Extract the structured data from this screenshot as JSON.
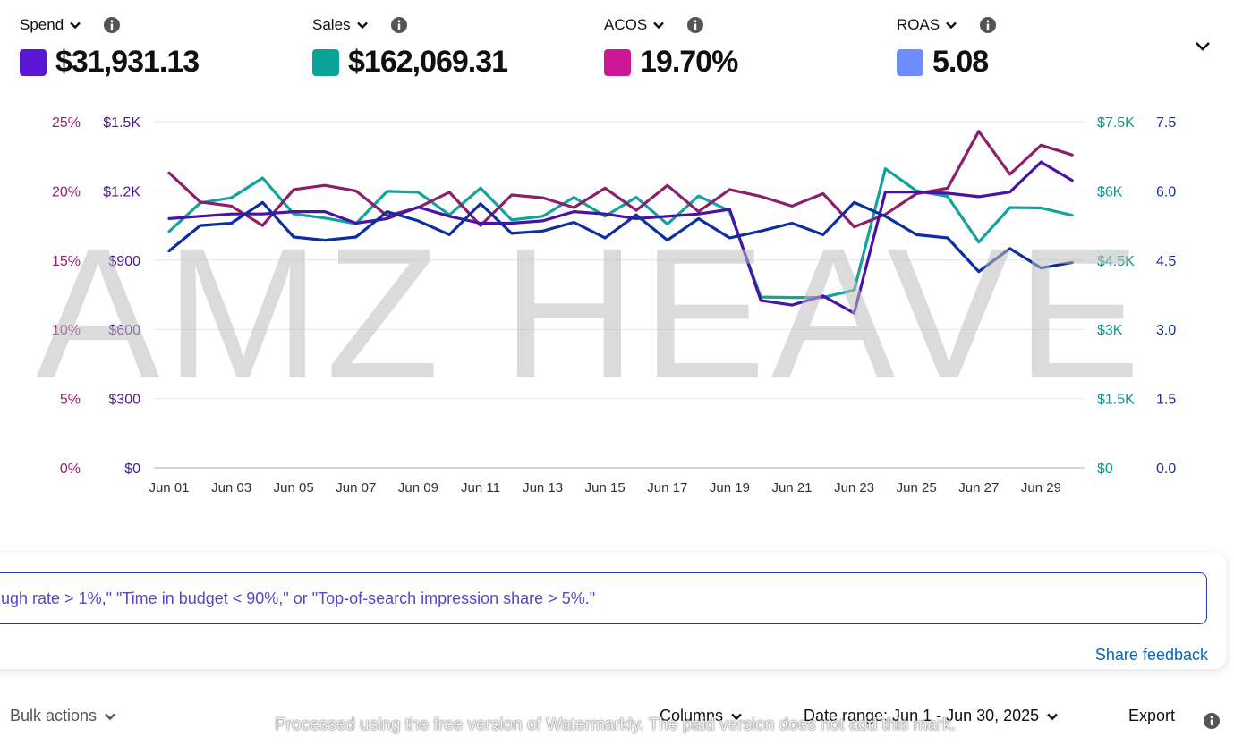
{
  "metrics": [
    {
      "label": "Spend",
      "value": "$31,931.13",
      "color": "#5b16d6"
    },
    {
      "label": "Sales",
      "value": "$162,069.31",
      "color": "#0aa39a"
    },
    {
      "label": "ACOS",
      "value": "19.70%",
      "color": "#cc1797"
    },
    {
      "label": "ROAS",
      "value": "5.08",
      "color": "#6e8cff"
    }
  ],
  "watermark_text": "AMZ HEAVE",
  "suggestion_text": "ugh rate > 1%,\" \"Time in budget < 90%,\" or \"Top-of-search impression share > 5%.\"",
  "share_feedback": "Share feedback",
  "toolbar": {
    "bulk_actions": "Bulk actions",
    "columns": "Columns",
    "date_range": "Date range: Jun 1 - Jun 30, 2025",
    "export": "Export"
  },
  "footer_watermark": "Processed using the free version of Watermarkly. The paid version does not add this mark.",
  "icons": {
    "info": "info-icon",
    "chevron": "chevron-down-icon"
  },
  "chart_data": {
    "type": "line",
    "x": [
      "Jun 01",
      "Jun 02",
      "Jun 03",
      "Jun 04",
      "Jun 05",
      "Jun 06",
      "Jun 07",
      "Jun 08",
      "Jun 09",
      "Jun 10",
      "Jun 11",
      "Jun 12",
      "Jun 13",
      "Jun 14",
      "Jun 15",
      "Jun 16",
      "Jun 17",
      "Jun 18",
      "Jun 19",
      "Jun 20",
      "Jun 21",
      "Jun 22",
      "Jun 23",
      "Jun 24",
      "Jun 25",
      "Jun 26",
      "Jun 27",
      "Jun 28",
      "Jun 29",
      "Jun 30"
    ],
    "x_tick_labels": [
      "Jun 01",
      "Jun 03",
      "Jun 05",
      "Jun 07",
      "Jun 09",
      "Jun 11",
      "Jun 13",
      "Jun 15",
      "Jun 17",
      "Jun 19",
      "Jun 21",
      "Jun 23",
      "Jun 25",
      "Jun 27",
      "Jun 29"
    ],
    "axes": {
      "acos": {
        "min": 0,
        "max": 25,
        "ticks": [
          "0%",
          "5%",
          "10%",
          "15%",
          "20%",
          "25%"
        ],
        "color": "#8e2470"
      },
      "spend": {
        "min": 0,
        "max": 1500,
        "ticks": [
          "$0",
          "$300",
          "$600",
          "$900",
          "$1.2K",
          "$1.5K"
        ],
        "color": "#4a1a91"
      },
      "sales": {
        "min": 0,
        "max": 7500,
        "ticks": [
          "$0",
          "$1.5K",
          "$3K",
          "$4.5K",
          "$6K",
          "$7.5K"
        ],
        "color": "#0a9a8c"
      },
      "roas": {
        "min": 0,
        "max": 7.5,
        "ticks": [
          "0.0",
          "1.5",
          "3.0",
          "4.5",
          "6.0",
          "7.5"
        ],
        "color": "#1a2f8f"
      }
    },
    "grid": true,
    "series": [
      {
        "name": "Sales",
        "axis": "sales",
        "color": "#12a49a",
        "values": [
          5120,
          5740,
          5850,
          6280,
          5500,
          5410,
          5290,
          5990,
          5970,
          5480,
          6060,
          5370,
          5450,
          5860,
          5450,
          5860,
          5280,
          5890,
          5560,
          3700,
          3690,
          3690,
          3850,
          6480,
          6000,
          5880,
          4890,
          5640,
          5630,
          5470
        ]
      },
      {
        "name": "ACOS",
        "axis": "acos",
        "color": "#8a1f6b",
        "values": [
          21.3,
          19.2,
          18.9,
          17.5,
          20.1,
          20.4,
          20.0,
          18.2,
          18.8,
          19.9,
          17.5,
          19.7,
          19.5,
          18.8,
          20.2,
          18.6,
          20.4,
          18.5,
          20.1,
          19.6,
          18.9,
          19.8,
          17.4,
          18.3,
          19.8,
          20.2,
          24.3,
          21.2,
          23.3,
          22.6
        ]
      },
      {
        "name": "Spend",
        "axis": "spend",
        "color": "#4a12a6",
        "values": [
          1080,
          1090,
          1100,
          1100,
          1110,
          1110,
          1060,
          1080,
          1130,
          1090,
          1060,
          1060,
          1070,
          1110,
          1100,
          1080,
          1090,
          1100,
          1120,
          725,
          705,
          745,
          670,
          1195,
          1195,
          1190,
          1175,
          1195,
          1325,
          1245
        ]
      },
      {
        "name": "ROAS",
        "axis": "roas",
        "color": "#0b2ea0",
        "values": [
          4.7,
          5.25,
          5.3,
          5.75,
          5.0,
          4.93,
          5.0,
          5.55,
          5.35,
          5.05,
          5.72,
          5.08,
          5.13,
          5.32,
          4.98,
          5.48,
          4.93,
          5.4,
          4.98,
          5.13,
          5.3,
          5.05,
          5.75,
          5.45,
          5.05,
          4.98,
          4.25,
          4.75,
          4.33,
          4.45
        ]
      }
    ]
  }
}
